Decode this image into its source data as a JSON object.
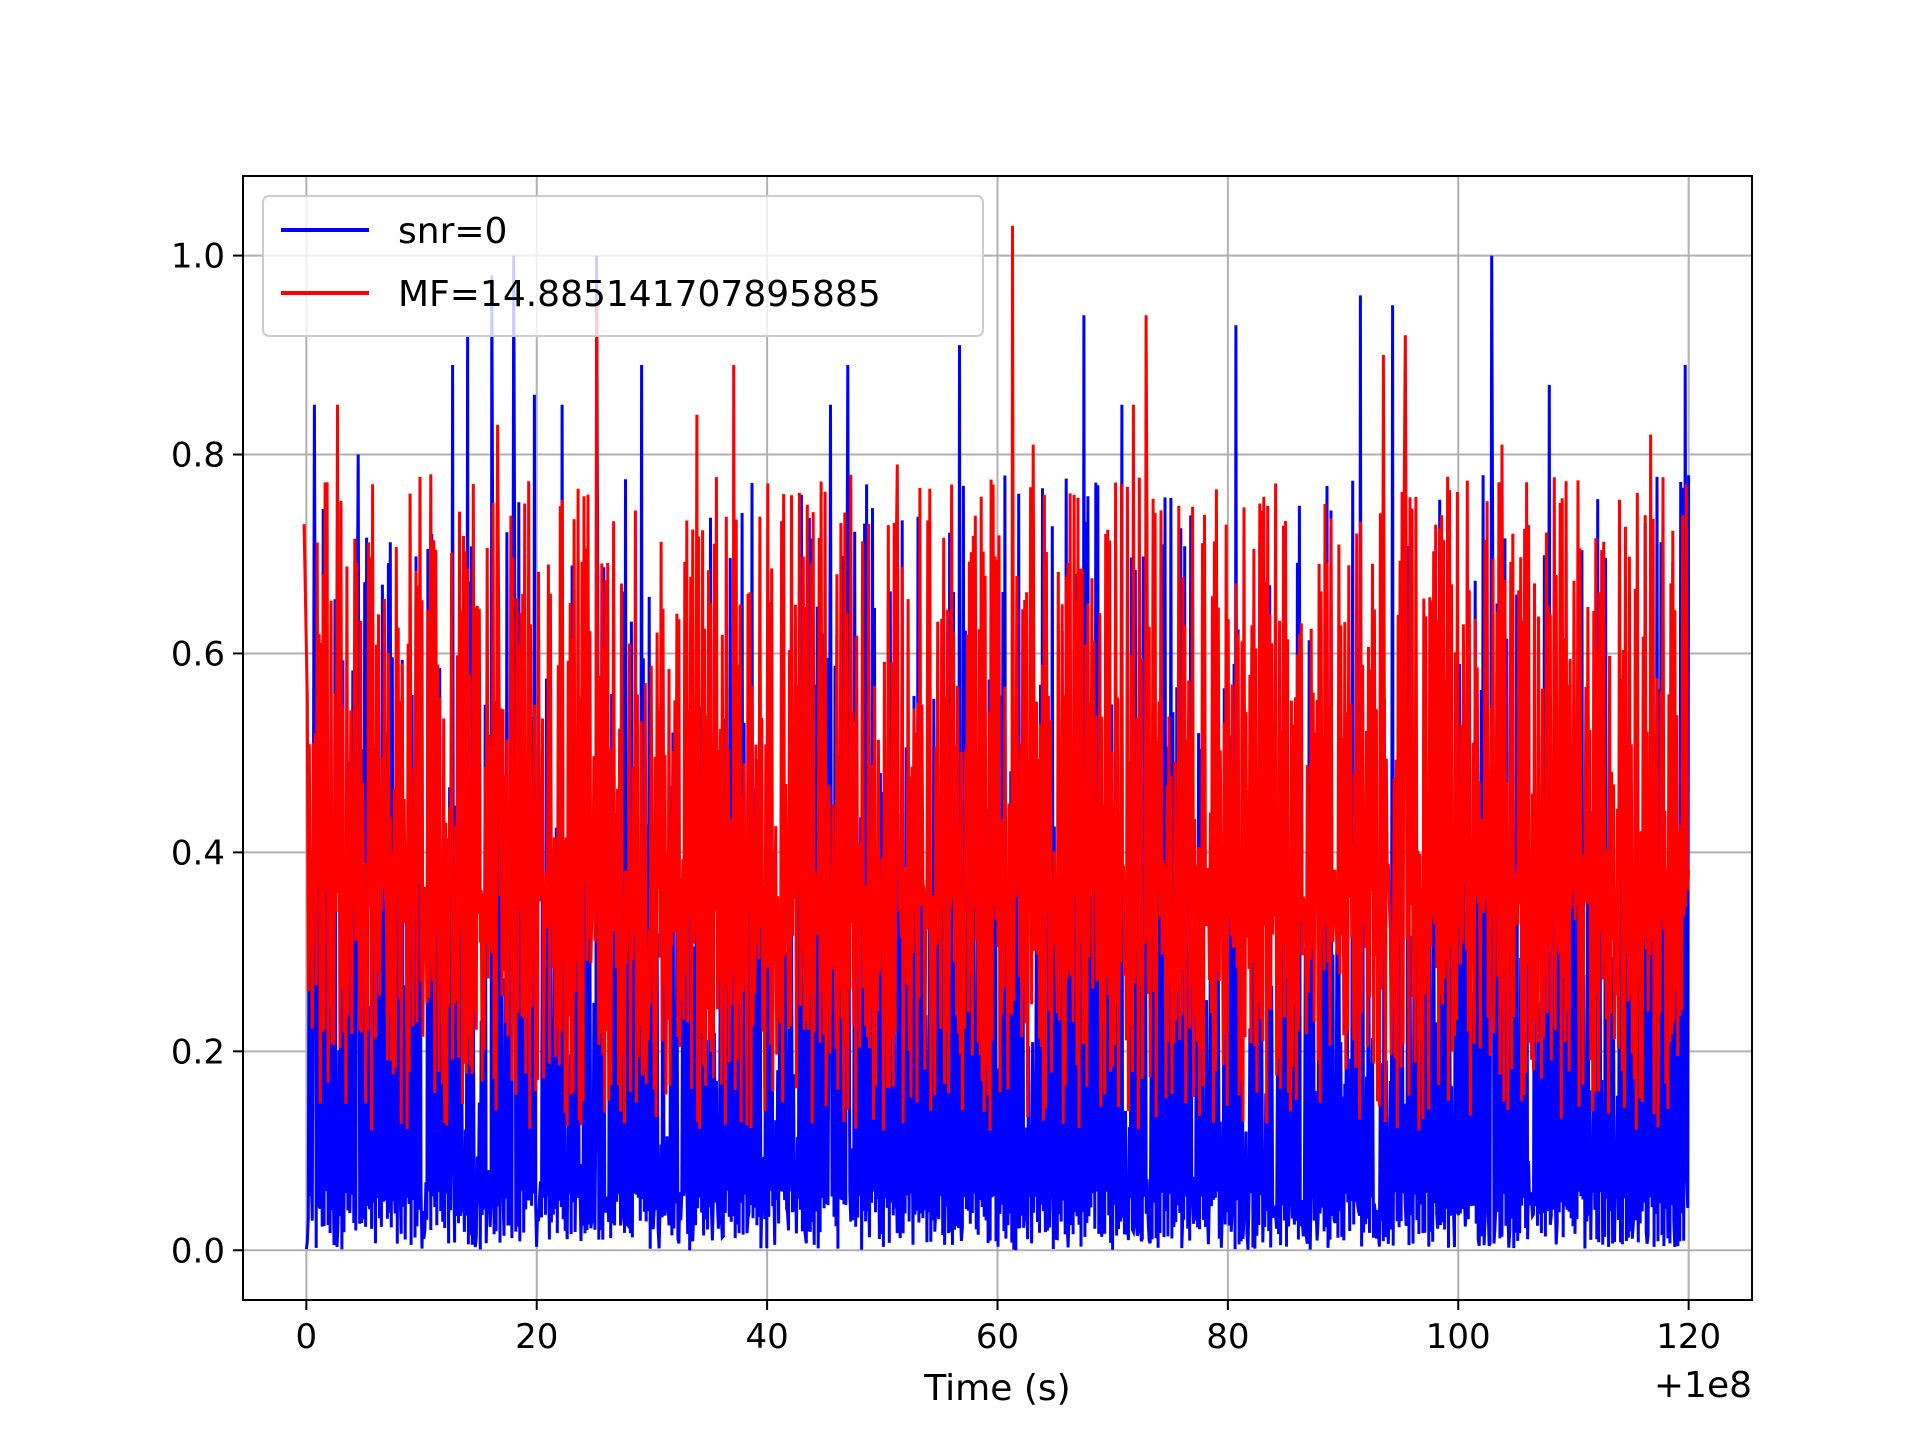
{
  "chart_data": {
    "type": "line",
    "title": "",
    "xlabel": "Time (s)",
    "ylabel": "",
    "x_offset_label": "+1e8",
    "xlim": [
      -5.5,
      125.5
    ],
    "ylim": [
      -0.05,
      1.08
    ],
    "xticks": [
      0,
      20,
      40,
      60,
      80,
      100,
      120
    ],
    "xtick_labels": [
      "0",
      "20",
      "40",
      "60",
      "80",
      "100",
      "120"
    ],
    "yticks": [
      0.0,
      0.2,
      0.4,
      0.6,
      0.8,
      1.0
    ],
    "ytick_labels": [
      "0.0",
      "0.2",
      "0.4",
      "0.6",
      "0.8",
      "1.0"
    ],
    "grid": true,
    "legend_position": "upper-left",
    "series": [
      {
        "name": "snr=0",
        "color": "#0000ff",
        "x_range": [
          0,
          120
        ],
        "envelope_min": 0.0,
        "envelope_max": 1.0,
        "peaks": [
          {
            "x": 0.7,
            "y": 0.85
          },
          {
            "x": 4.5,
            "y": 0.8
          },
          {
            "x": 12.7,
            "y": 0.89
          },
          {
            "x": 14.0,
            "y": 0.92
          },
          {
            "x": 16.1,
            "y": 0.98
          },
          {
            "x": 18.0,
            "y": 1.0
          },
          {
            "x": 19.8,
            "y": 0.86
          },
          {
            "x": 22.2,
            "y": 0.85
          },
          {
            "x": 25.2,
            "y": 1.0
          },
          {
            "x": 29.1,
            "y": 0.89
          },
          {
            "x": 45.5,
            "y": 0.85
          },
          {
            "x": 47.0,
            "y": 0.89
          },
          {
            "x": 56.7,
            "y": 0.91
          },
          {
            "x": 67.5,
            "y": 0.94
          },
          {
            "x": 70.8,
            "y": 0.85
          },
          {
            "x": 80.7,
            "y": 0.93
          },
          {
            "x": 91.5,
            "y": 0.96
          },
          {
            "x": 94.3,
            "y": 0.95
          },
          {
            "x": 102.9,
            "y": 1.0
          },
          {
            "x": 107.9,
            "y": 0.87
          },
          {
            "x": 119.7,
            "y": 0.89
          }
        ]
      },
      {
        "name": "MF=14.885141707895885",
        "color": "#ff0000",
        "x_range": [
          0,
          120
        ],
        "envelope_min": 0.02,
        "envelope_max": 1.03,
        "peaks": [
          {
            "x": -0.2,
            "y": 0.73
          },
          {
            "x": 2.7,
            "y": 0.85
          },
          {
            "x": 10.8,
            "y": 0.78
          },
          {
            "x": 16.6,
            "y": 0.83
          },
          {
            "x": 25.2,
            "y": 0.95
          },
          {
            "x": 33.9,
            "y": 0.84
          },
          {
            "x": 37.1,
            "y": 0.89
          },
          {
            "x": 51.3,
            "y": 0.79
          },
          {
            "x": 61.3,
            "y": 1.03
          },
          {
            "x": 63.1,
            "y": 0.81
          },
          {
            "x": 71.8,
            "y": 0.85
          },
          {
            "x": 72.9,
            "y": 0.94
          },
          {
            "x": 93.5,
            "y": 0.9
          },
          {
            "x": 95.4,
            "y": 0.92
          },
          {
            "x": 103.8,
            "y": 0.81
          },
          {
            "x": 116.7,
            "y": 0.82
          },
          {
            "x": 119.8,
            "y": 0.77
          }
        ]
      }
    ]
  }
}
